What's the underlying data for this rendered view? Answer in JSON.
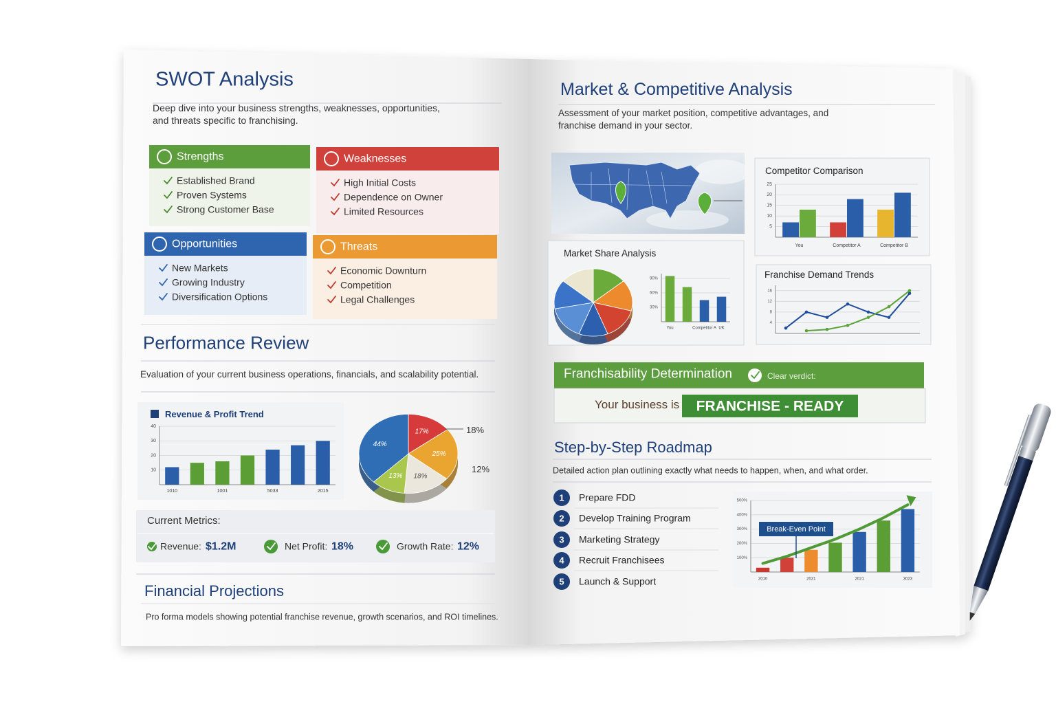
{
  "left_page": {
    "swot": {
      "title": "SWOT Analysis",
      "description": "Deep dive into your business strengths, weaknesses, opportunities, and threats specific to franchising.",
      "quadrants": [
        {
          "title": "Strengths",
          "items": [
            "Established Brand",
            "Proven Systems",
            "Strong Customer Base"
          ]
        },
        {
          "title": "Weaknesses",
          "items": [
            "High Initial Costs",
            "Dependence on Owner",
            "Limited Resources"
          ]
        },
        {
          "title": "Opportunities",
          "items": [
            "New Markets",
            "Growing Industry",
            "Diversification Options"
          ]
        },
        {
          "title": "Threats",
          "items": [
            "Economic Downturn",
            "Competition",
            "Legal Challenges"
          ]
        }
      ]
    },
    "performance_review": {
      "title": "Performance Review",
      "description": "Evaluation of your current business operations, financials, and scalability potential."
    },
    "revenue_chart": {
      "type": "bar",
      "title": "Revenue & Profit Trend",
      "categories": [
        "1010",
        null,
        "1001",
        null,
        "5033",
        null,
        "2015"
      ],
      "values": [
        12,
        15,
        16,
        20,
        24,
        27,
        30
      ],
      "colors": [
        "#2b5ea8",
        "#5a9e35",
        "#5a9e35",
        "#5a9e35",
        "#2b5ea8",
        "#2b5ea8",
        "#2b5ea8"
      ],
      "ylim": [
        0,
        40
      ],
      "yticks": [
        10,
        20,
        30,
        40
      ],
      "grid": true
    },
    "profit_pie": {
      "type": "pie",
      "values": [
        17,
        25,
        18,
        13,
        44
      ],
      "value_labels": [
        "17%",
        "25%",
        "18%",
        "13%",
        "44%"
      ],
      "colors": [
        "#d63a3a",
        "#eaa531",
        "#ece7dc",
        "#a9c74c",
        "#2f6db5"
      ],
      "annotations": [
        "18%",
        "12%"
      ]
    },
    "current_metrics": {
      "title": "Current Metrics:",
      "items": [
        {
          "label": "Revenue:",
          "value": "$1.2M"
        },
        {
          "label": "Net Profit:",
          "value": "18%"
        },
        {
          "label": "Growth Rate:",
          "value": "12%"
        }
      ]
    },
    "financial_projections": {
      "title": "Financial Projections",
      "description": "Pro forma models showing potential franchise revenue, growth scenarios, and ROI timelines."
    }
  },
  "right_page": {
    "market": {
      "title": "Market & Competitive Analysis",
      "description": "Assessment of your market position, competitive advantages, and franchise demand in your sector."
    },
    "competitor_chart": {
      "type": "bar",
      "title": "Competitor Comparison",
      "categories": [
        "You",
        "Competitor A",
        "Competitor B"
      ],
      "series": [
        {
          "colors": [
            "#2b5ea8",
            "#d2403a",
            "#e8b52e"
          ],
          "values": [
            7,
            7,
            13
          ]
        },
        {
          "colors": [
            "#6aab3c",
            "#2b5ea8",
            "#2b5ea8"
          ],
          "values": [
            13,
            18,
            21
          ]
        }
      ],
      "ylim": [
        0,
        25
      ],
      "yticks": [
        5,
        10,
        15,
        20,
        25
      ],
      "grid": true
    },
    "market_share": {
      "title": "Market Share Analysis",
      "pie": {
        "type": "pie",
        "values": [
          14,
          15,
          15,
          12,
          16,
          14,
          14
        ],
        "colors": [
          "#6aab3c",
          "#ee8a2e",
          "#d2442f",
          "#2c5fae",
          "#5a8fd6",
          "#3a73c8",
          "#ebe6cf"
        ]
      },
      "bars": {
        "type": "bar",
        "categories": [
          "You",
          null,
          "Competitor A",
          "UK"
        ],
        "values": [
          95,
          72,
          45,
          52
        ],
        "colors": [
          "#6aab3c",
          "#6aab3c",
          "#2b5ea8",
          "#2b5ea8"
        ],
        "ylim": [
          0,
          100
        ],
        "yticks": [
          {
            "value": 30,
            "label": "30%"
          },
          {
            "value": 60,
            "label": "60%"
          },
          {
            "value": 90,
            "label": "90%"
          }
        ],
        "grid": true
      }
    },
    "demand_trends": {
      "type": "line",
      "title": "Franchise Demand Trends",
      "categories": [
        null,
        null,
        null,
        null,
        null,
        null,
        null
      ],
      "series": [
        {
          "color": "#1f4e9c",
          "values": [
            2,
            8,
            6,
            11,
            8,
            6,
            15
          ]
        },
        {
          "color": "#5aa33a",
          "values": [
            null,
            1,
            1.5,
            3,
            6,
            10,
            16
          ]
        }
      ],
      "ylim": [
        0,
        18
      ],
      "yticks": [
        4,
        8,
        12,
        16
      ],
      "grid": true
    },
    "verdict": {
      "title": "Franchisability Determination",
      "note": "Clear verdict:",
      "statement": "Your business is",
      "result": "FRANCHISE - READY"
    },
    "roadmap": {
      "title": "Step-by-Step Roadmap",
      "description": "Detailed action plan outlining exactly what needs to happen, when, and what order.",
      "steps": [
        {
          "number": "1",
          "label": "Prepare FDD"
        },
        {
          "number": "2",
          "label": "Develop Training Program"
        },
        {
          "number": "3",
          "label": "Marketing Strategy"
        },
        {
          "number": "4",
          "label": "Recruit Franchisees"
        },
        {
          "number": "5",
          "label": "Launch & Support"
        }
      ]
    },
    "break_even_chart": {
      "type": "bar",
      "categories": [
        "2010",
        null,
        "2021",
        null,
        "2021",
        null,
        "3023"
      ],
      "values": [
        30,
        100,
        155,
        205,
        280,
        360,
        440
      ],
      "colors": [
        "#c9372e",
        "#d2403a",
        "#ec8c2f",
        "#5a9e35",
        "#2b5ea8",
        "#5a9e35",
        "#2b5ea8"
      ],
      "ylim": [
        0,
        500
      ],
      "yticks": [
        {
          "value": 100,
          "label": "100%"
        },
        {
          "value": 200,
          "label": "200%"
        },
        {
          "value": 300,
          "label": "300%"
        },
        {
          "value": 400,
          "label": "400%"
        },
        {
          "value": 500,
          "label": "500%"
        }
      ],
      "grid": true,
      "annotation": "Break-Even Point",
      "trend": {
        "color": "#4f9a35",
        "values": [
          60,
          110,
          170,
          230,
          300,
          380,
          470
        ]
      }
    }
  }
}
